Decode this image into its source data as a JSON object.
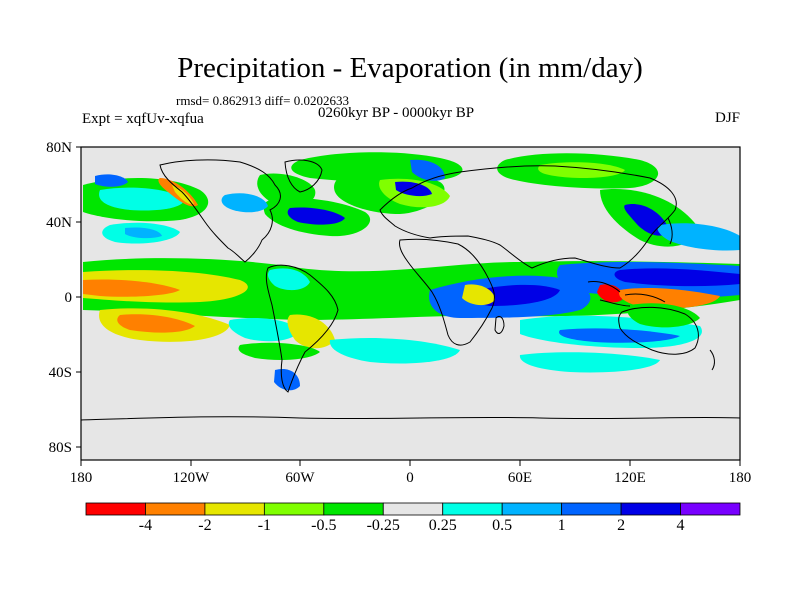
{
  "title": "Precipitation - Evaporation (in mm/day)",
  "stats": "rmsd= 0.862913 diff= 0.0202633",
  "experiment": "Expt = xqfUv-xqfua",
  "period": "0260kyr BP - 0000kyr BP",
  "season": "DJF",
  "lat_labels": [
    "80N",
    "40N",
    "0",
    "40S",
    "80S"
  ],
  "lon_labels": [
    "180",
    "120W",
    "60W",
    "0",
    "60E",
    "120E",
    "180"
  ],
  "colorbar": {
    "colors": [
      "#ff0000",
      "#ff8000",
      "#e6e600",
      "#80ff00",
      "#00e600",
      "#e6e6e6",
      "#00ffe6",
      "#00b3ff",
      "#0064ff",
      "#0000e6",
      "#7800ff"
    ],
    "labels": [
      "-4",
      "-2",
      "-1",
      "-0.5",
      "-0.25",
      "0.25",
      "0.5",
      "1",
      "2",
      "4"
    ]
  },
  "colors": {
    "ocean_background": "#e6e6e6",
    "coastline": "#000000"
  }
}
